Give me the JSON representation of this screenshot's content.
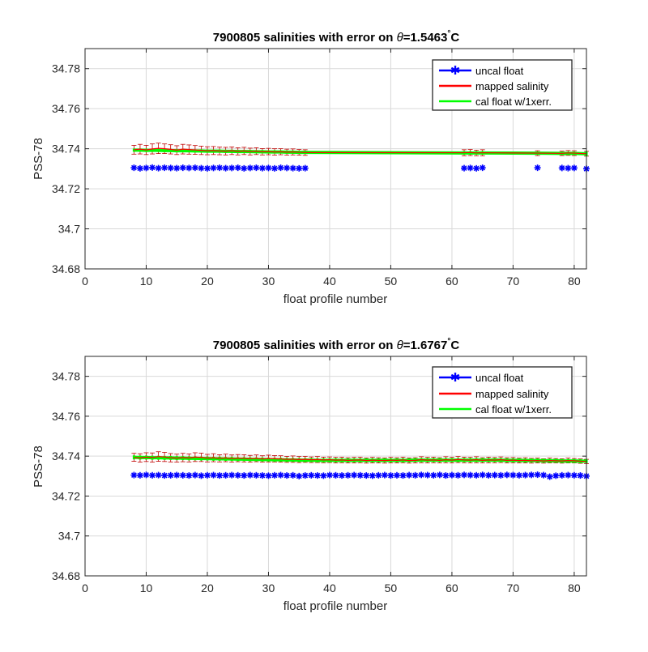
{
  "colors": {
    "uncal": "#0000ff",
    "mapped": "#ff0000",
    "errorbar": "#c00000",
    "cal": "#00ff00",
    "grid": "#d9d9d9",
    "axes": "#262626"
  },
  "chart_data": [
    {
      "type": "scatter",
      "title_prefix": "7900805 salinities with error on ",
      "title_symbol": "θ",
      "title_value": "=1.5463",
      "title_degree": "°",
      "title_unit": "C",
      "xlabel": "float profile number",
      "ylabel": "PSS-78",
      "xlim": [
        0,
        82
      ],
      "ylim": [
        34.68,
        34.79
      ],
      "xticks": [
        0,
        10,
        20,
        30,
        40,
        50,
        60,
        70,
        80
      ],
      "yticks": [
        34.68,
        34.7,
        34.72,
        34.74,
        34.76,
        34.78
      ],
      "ytick_labels": [
        "34.68",
        "34.7",
        "34.72",
        "34.74",
        "34.76",
        "34.78"
      ],
      "grid": true,
      "legend_position": "top-right",
      "legend": [
        "uncal float",
        "mapped salinity",
        "cal float w/1xerr."
      ],
      "series": [
        {
          "name": "uncal float",
          "x": [
            8,
            9,
            10,
            11,
            12,
            13,
            14,
            15,
            16,
            17,
            18,
            19,
            20,
            21,
            22,
            23,
            24,
            25,
            26,
            27,
            28,
            29,
            30,
            31,
            32,
            33,
            34,
            35,
            36,
            62,
            63,
            64,
            65,
            74,
            78,
            79,
            80,
            82
          ],
          "y": [
            34.7305,
            34.7302,
            34.7304,
            34.7306,
            34.7303,
            34.7305,
            34.7304,
            34.7303,
            34.7305,
            34.7304,
            34.7305,
            34.7303,
            34.7302,
            34.7304,
            34.7305,
            34.7303,
            34.7304,
            34.7305,
            34.7302,
            34.7304,
            34.7305,
            34.7303,
            34.7304,
            34.7302,
            34.7305,
            34.7304,
            34.7303,
            34.7302,
            34.7303,
            34.7303,
            34.7304,
            34.7302,
            34.7305,
            34.7305,
            34.7304,
            34.7303,
            34.7304,
            34.73
          ]
        },
        {
          "name": "mapped salinity",
          "x": [
            8,
            9,
            10,
            11,
            12,
            13,
            14,
            15,
            16,
            17,
            18,
            19,
            20,
            21,
            22,
            23,
            24,
            25,
            26,
            27,
            28,
            29,
            30,
            31,
            32,
            33,
            34,
            35,
            36,
            62,
            63,
            64,
            65,
            74,
            78,
            79,
            80,
            82
          ],
          "y": [
            34.7395,
            34.7398,
            34.7394,
            34.7399,
            34.7402,
            34.74,
            34.7397,
            34.7393,
            34.7398,
            34.7396,
            34.7394,
            34.7392,
            34.739,
            34.7391,
            34.7389,
            34.7388,
            34.739,
            34.7387,
            34.7389,
            34.7386,
            34.7388,
            34.7385,
            34.7386,
            34.7384,
            34.7385,
            34.7383,
            34.7384,
            34.7382,
            34.7381,
            34.738,
            34.7381,
            34.7379,
            34.738,
            34.7378,
            34.7377,
            34.7379,
            34.7378,
            34.7375
          ],
          "err": [
            0.0022,
            0.0024,
            0.0023,
            0.0025,
            0.0026,
            0.0024,
            0.0023,
            0.0022,
            0.0024,
            0.0023,
            0.0022,
            0.0021,
            0.002,
            0.002,
            0.0019,
            0.0019,
            0.0019,
            0.0018,
            0.0018,
            0.0017,
            0.0017,
            0.0016,
            0.0016,
            0.0016,
            0.0015,
            0.0015,
            0.0015,
            0.0014,
            0.0014,
            0.0015,
            0.0015,
            0.0014,
            0.0015,
            0.0012,
            0.0011,
            0.0012,
            0.0012,
            0.0012
          ]
        },
        {
          "name": "cal float w/1xerr.",
          "x": [
            8,
            9,
            10,
            11,
            12,
            13,
            14,
            15,
            16,
            17,
            18,
            19,
            20,
            21,
            22,
            23,
            24,
            25,
            26,
            27,
            28,
            29,
            30,
            31,
            32,
            33,
            34,
            35,
            36,
            62,
            63,
            64,
            65,
            74,
            78,
            79,
            80,
            82
          ],
          "y": [
            34.7393,
            34.7393,
            34.7392,
            34.7392,
            34.7392,
            34.7391,
            34.7391,
            34.739,
            34.739,
            34.739,
            34.7389,
            34.7389,
            34.7388,
            34.7388,
            34.7388,
            34.7387,
            34.7387,
            34.7386,
            34.7386,
            34.7386,
            34.7385,
            34.7385,
            34.7384,
            34.7384,
            34.7384,
            34.7383,
            34.7383,
            34.7382,
            34.7382,
            34.7379,
            34.7379,
            34.7379,
            34.7379,
            34.7378,
            34.7377,
            34.7377,
            34.7377,
            34.7375
          ],
          "err": [
            0.0008,
            0.0008,
            0.0008,
            0.0008,
            0.0008,
            0.0008,
            0.0008,
            0.0008,
            0.0008,
            0.0008,
            0.0008,
            0.0008,
            0.0008,
            0.0008,
            0.0008,
            0.0008,
            0.0008,
            0.0008,
            0.0008,
            0.0008,
            0.0008,
            0.0008,
            0.0008,
            0.0008,
            0.0008,
            0.0008,
            0.0008,
            0.0008,
            0.0008,
            0.0009,
            0.0009,
            0.0009,
            0.0009,
            0.0008,
            0.0008,
            0.0008,
            0.0008,
            0.0012
          ]
        }
      ]
    },
    {
      "type": "scatter",
      "title_prefix": "7900805 salinities with error on ",
      "title_symbol": "θ",
      "title_value": "=1.6767",
      "title_degree": "°",
      "title_unit": "C",
      "xlabel": "float profile number",
      "ylabel": "PSS-78",
      "xlim": [
        0,
        82
      ],
      "ylim": [
        34.68,
        34.79
      ],
      "xticks": [
        0,
        10,
        20,
        30,
        40,
        50,
        60,
        70,
        80
      ],
      "yticks": [
        34.68,
        34.7,
        34.72,
        34.74,
        34.76,
        34.78
      ],
      "ytick_labels": [
        "34.68",
        "34.7",
        "34.72",
        "34.74",
        "34.76",
        "34.78"
      ],
      "grid": true,
      "legend_position": "top-right",
      "legend": [
        "uncal float",
        "mapped salinity",
        "cal float w/1xerr."
      ],
      "series": [
        {
          "name": "uncal float",
          "x": [
            8,
            9,
            10,
            11,
            12,
            13,
            14,
            15,
            16,
            17,
            18,
            19,
            20,
            21,
            22,
            23,
            24,
            25,
            26,
            27,
            28,
            29,
            30,
            31,
            32,
            33,
            34,
            35,
            36,
            37,
            38,
            39,
            40,
            41,
            42,
            43,
            44,
            45,
            46,
            47,
            48,
            49,
            50,
            51,
            52,
            53,
            54,
            55,
            56,
            57,
            58,
            59,
            60,
            61,
            62,
            63,
            64,
            65,
            66,
            67,
            68,
            69,
            70,
            71,
            72,
            73,
            74,
            75,
            76,
            77,
            78,
            79,
            80,
            81,
            82
          ],
          "y": [
            34.7305,
            34.7304,
            34.7306,
            34.7304,
            34.7305,
            34.7303,
            34.7304,
            34.7305,
            34.7304,
            34.7303,
            34.7305,
            34.7302,
            34.7304,
            34.7305,
            34.7303,
            34.7304,
            34.7305,
            34.7304,
            34.7303,
            34.7305,
            34.7304,
            34.7303,
            34.7302,
            34.7304,
            34.7305,
            34.7303,
            34.7304,
            34.73,
            34.7303,
            34.7304,
            34.7303,
            34.7302,
            34.7305,
            34.7304,
            34.7303,
            34.7304,
            34.7305,
            34.7304,
            34.7303,
            34.7302,
            34.7304,
            34.7305,
            34.7303,
            34.7304,
            34.7303,
            34.7305,
            34.7304,
            34.7306,
            34.7305,
            34.7304,
            34.7306,
            34.7303,
            34.7305,
            34.7304,
            34.7306,
            34.7305,
            34.7304,
            34.7306,
            34.7304,
            34.7305,
            34.7304,
            34.7306,
            34.7305,
            34.7304,
            34.7305,
            34.7306,
            34.7307,
            34.7305,
            34.7297,
            34.7302,
            34.7304,
            34.7305,
            34.7304,
            34.7303,
            34.73
          ]
        },
        {
          "name": "mapped salinity",
          "x": [
            8,
            9,
            10,
            11,
            12,
            13,
            14,
            15,
            16,
            17,
            18,
            19,
            20,
            21,
            22,
            23,
            24,
            25,
            26,
            27,
            28,
            29,
            30,
            31,
            32,
            33,
            34,
            35,
            36,
            37,
            38,
            39,
            40,
            41,
            42,
            43,
            44,
            45,
            46,
            47,
            48,
            49,
            50,
            51,
            52,
            53,
            54,
            55,
            56,
            57,
            58,
            59,
            60,
            61,
            62,
            63,
            64,
            65,
            66,
            67,
            68,
            69,
            70,
            71,
            72,
            73,
            74,
            75,
            76,
            77,
            78,
            79,
            80,
            81,
            82
          ],
          "y": [
            34.7394,
            34.7391,
            34.7395,
            34.7393,
            34.7398,
            34.7396,
            34.7392,
            34.739,
            34.7393,
            34.7391,
            34.7395,
            34.7394,
            34.739,
            34.7392,
            34.7389,
            34.7391,
            34.7388,
            34.739,
            34.7389,
            34.7387,
            34.7389,
            34.7386,
            34.7388,
            34.7387,
            34.7386,
            34.7384,
            34.7385,
            34.7383,
            34.7384,
            34.7382,
            34.7383,
            34.7381,
            34.7382,
            34.738,
            34.7381,
            34.7379,
            34.738,
            34.7381,
            34.7378,
            34.738,
            34.7379,
            34.7378,
            34.738,
            34.7379,
            34.7381,
            34.7378,
            34.7379,
            34.7382,
            34.738,
            34.7381,
            34.7379,
            34.7382,
            34.738,
            34.7383,
            34.7381,
            34.738,
            34.7382,
            34.7379,
            34.7381,
            34.738,
            34.7382,
            34.7379,
            34.738,
            34.7378,
            34.7379,
            34.7377,
            34.7378,
            34.7376,
            34.7378,
            34.7377,
            34.7376,
            34.7378,
            34.7377,
            34.7375,
            34.7373
          ],
          "err": [
            0.002,
            0.0021,
            0.0022,
            0.0023,
            0.0024,
            0.0023,
            0.0021,
            0.002,
            0.0021,
            0.002,
            0.0022,
            0.0021,
            0.0019,
            0.002,
            0.0018,
            0.0019,
            0.0018,
            0.0018,
            0.0018,
            0.0017,
            0.0017,
            0.0016,
            0.0017,
            0.0016,
            0.0016,
            0.0015,
            0.0016,
            0.0015,
            0.0015,
            0.0014,
            0.0015,
            0.0014,
            0.0014,
            0.0014,
            0.0014,
            0.0013,
            0.0014,
            0.0014,
            0.0013,
            0.0014,
            0.0013,
            0.0013,
            0.0014,
            0.0013,
            0.0014,
            0.0013,
            0.0013,
            0.0015,
            0.0014,
            0.0014,
            0.0013,
            0.0015,
            0.0014,
            0.0015,
            0.0014,
            0.0014,
            0.0015,
            0.0013,
            0.0014,
            0.0013,
            0.0014,
            0.0013,
            0.0013,
            0.0012,
            0.0013,
            0.0012,
            0.0012,
            0.0011,
            0.0012,
            0.0011,
            0.0011,
            0.0012,
            0.0011,
            0.0011,
            0.0011
          ]
        },
        {
          "name": "cal float w/1xerr.",
          "x": [
            8,
            9,
            10,
            11,
            12,
            13,
            14,
            15,
            16,
            17,
            18,
            19,
            20,
            21,
            22,
            23,
            24,
            25,
            26,
            27,
            28,
            29,
            30,
            31,
            32,
            33,
            34,
            35,
            36,
            37,
            38,
            39,
            40,
            41,
            42,
            43,
            44,
            45,
            46,
            47,
            48,
            49,
            50,
            51,
            52,
            53,
            54,
            55,
            56,
            57,
            58,
            59,
            60,
            61,
            62,
            63,
            64,
            65,
            66,
            67,
            68,
            69,
            70,
            71,
            72,
            73,
            74,
            75,
            76,
            77,
            78,
            79,
            80,
            81,
            82
          ],
          "y": [
            34.7394,
            34.7393,
            34.7393,
            34.7392,
            34.7392,
            34.7391,
            34.7391,
            34.739,
            34.739,
            34.7389,
            34.7389,
            34.7388,
            34.7388,
            34.7387,
            34.7387,
            34.7386,
            34.7386,
            34.7385,
            34.7385,
            34.7384,
            34.7384,
            34.7383,
            34.7383,
            34.7382,
            34.7382,
            34.7381,
            34.7381,
            34.738,
            34.738,
            34.738,
            34.7379,
            34.7379,
            34.7379,
            34.7379,
            34.7379,
            34.7379,
            34.7379,
            34.7379,
            34.7379,
            34.7379,
            34.7379,
            34.7379,
            34.7379,
            34.7379,
            34.7379,
            34.7379,
            34.738,
            34.738,
            34.738,
            34.738,
            34.738,
            34.738,
            34.738,
            34.738,
            34.738,
            34.738,
            34.738,
            34.738,
            34.738,
            34.738,
            34.738,
            34.7379,
            34.7379,
            34.7379,
            34.7378,
            34.7378,
            34.7378,
            34.7377,
            34.7377,
            34.7377,
            34.7376,
            34.7376,
            34.7376,
            34.7375,
            34.7375
          ],
          "err": [
            0.001,
            0.001,
            0.001,
            0.001,
            0.001,
            0.001,
            0.001,
            0.001,
            0.001,
            0.001,
            0.001,
            0.001,
            0.001,
            0.001,
            0.001,
            0.001,
            0.001,
            0.001,
            0.001,
            0.001,
            0.001,
            0.001,
            0.001,
            0.001,
            0.001,
            0.001,
            0.001,
            0.001,
            0.001,
            0.001,
            0.001,
            0.001,
            0.001,
            0.001,
            0.001,
            0.001,
            0.001,
            0.001,
            0.001,
            0.001,
            0.001,
            0.001,
            0.001,
            0.001,
            0.001,
            0.001,
            0.001,
            0.001,
            0.001,
            0.001,
            0.001,
            0.001,
            0.001,
            0.001,
            0.001,
            0.001,
            0.001,
            0.001,
            0.001,
            0.001,
            0.001,
            0.001,
            0.001,
            0.001,
            0.001,
            0.001,
            0.001,
            0.001,
            0.001,
            0.001,
            0.001,
            0.001,
            0.001,
            0.001,
            0.001
          ]
        }
      ]
    }
  ]
}
